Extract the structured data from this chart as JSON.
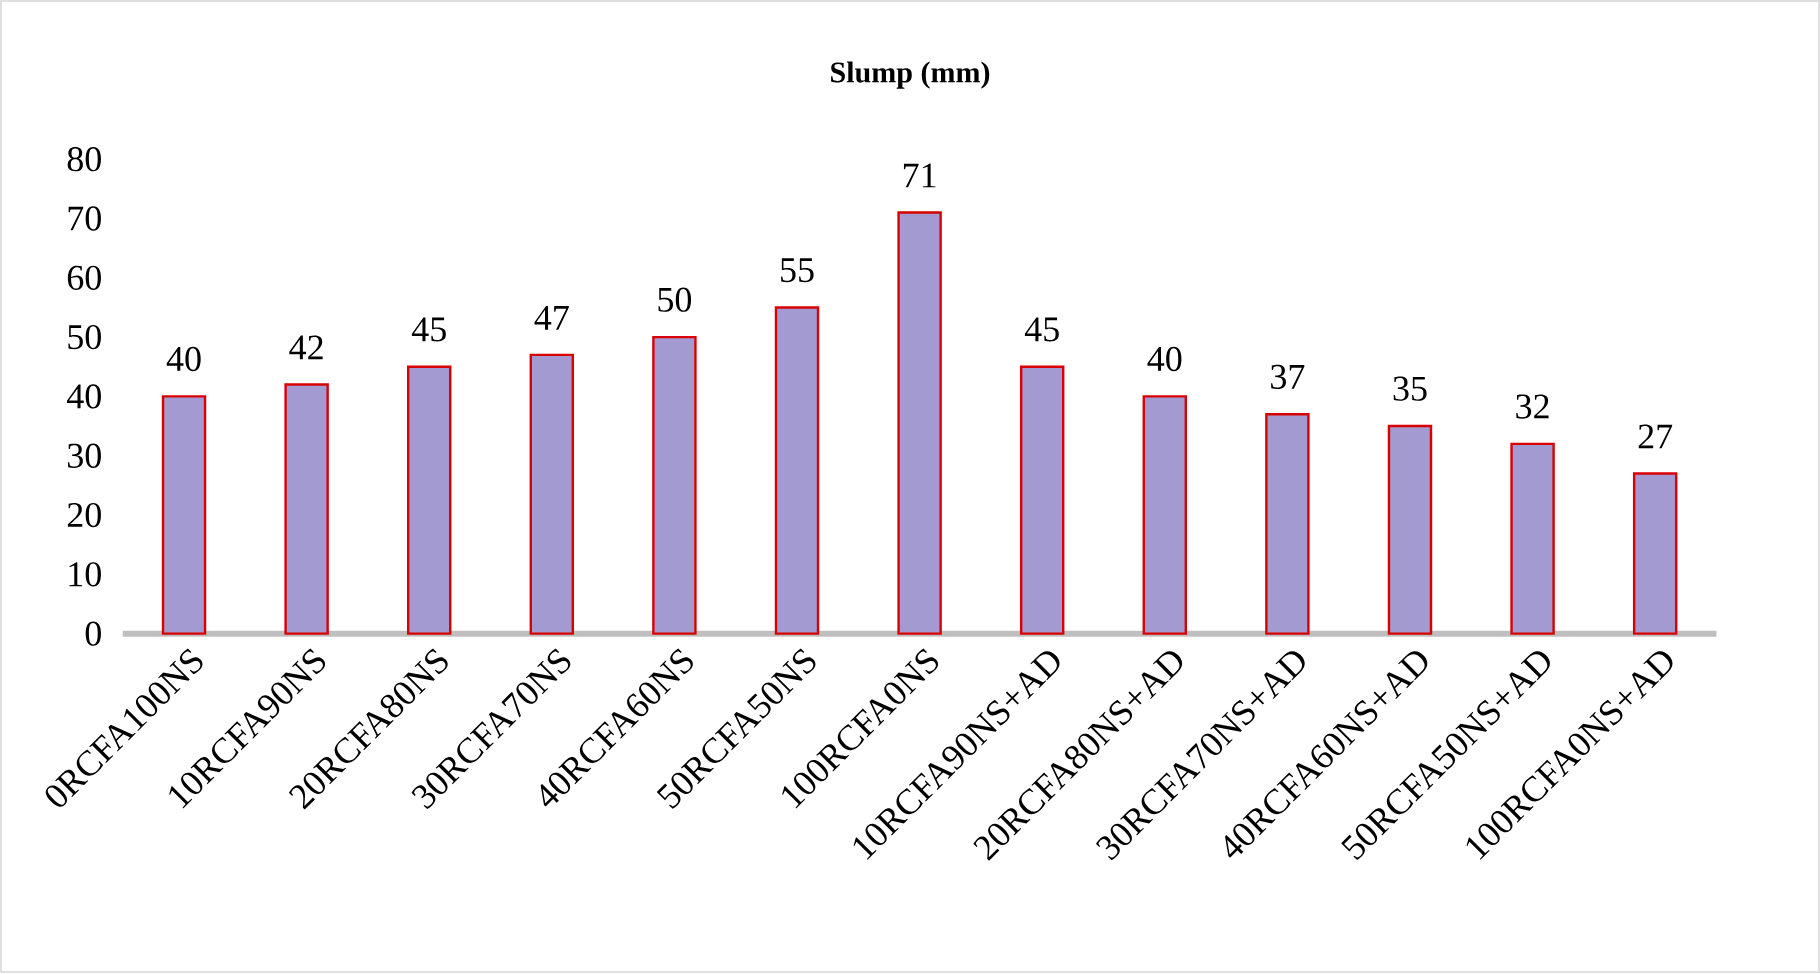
{
  "chart_data": {
    "type": "bar",
    "title": "Slump (mm)",
    "categories": [
      "0RCFA100NS",
      "10RCFA90NS",
      "20RCFA80NS",
      "30RCFA70NS",
      "40RCFA60NS",
      "50RCFA50NS",
      "100RCFA0NS",
      "10RCFA90NS+AD",
      "20RCFA80NS+AD",
      "30RCFA70NS+AD",
      "40RCFA60NS+AD",
      "50RCFA50NS+AD",
      "100RCFA0NS+AD"
    ],
    "values": [
      40,
      42,
      45,
      47,
      50,
      55,
      71,
      45,
      40,
      37,
      35,
      32,
      27
    ],
    "color": "#a29ad0",
    "ylim": [
      0,
      80
    ],
    "yticks": [
      0,
      10,
      20,
      30,
      40,
      50,
      60,
      70,
      80
    ],
    "data_labels": true
  }
}
